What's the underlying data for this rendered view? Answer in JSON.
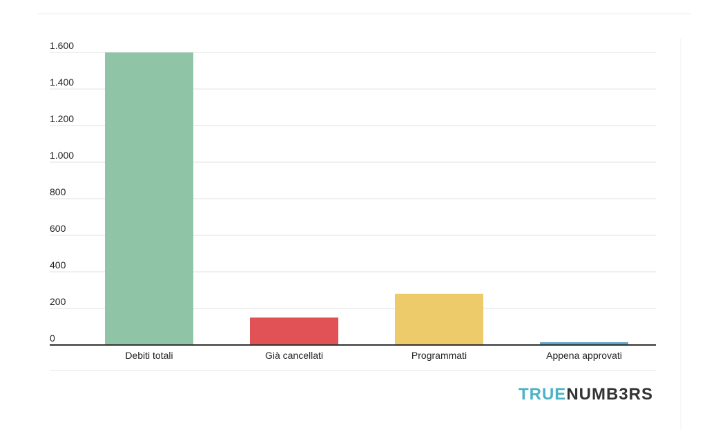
{
  "chart_data": {
    "type": "bar",
    "categories": [
      "Debiti totali",
      "Già cancellati",
      "Programmati",
      "Appena approvati"
    ],
    "values": [
      1600,
      150,
      280,
      15
    ],
    "colors": [
      "#8fc4a6",
      "#e05256",
      "#eecb6a",
      "#5ba7c9"
    ],
    "ylim": [
      0,
      1600
    ],
    "yticks": [
      0,
      200,
      400,
      600,
      800,
      {
        "value": 1000,
        "label": "1.000"
      },
      {
        "value": 1200,
        "label": "1.200"
      },
      {
        "value": 1400,
        "label": "1.400"
      },
      {
        "value": 1600,
        "label": "1.600"
      }
    ],
    "grid": true
  },
  "brand": {
    "accent": "TRUE",
    "rest": "NUMB3RS"
  }
}
